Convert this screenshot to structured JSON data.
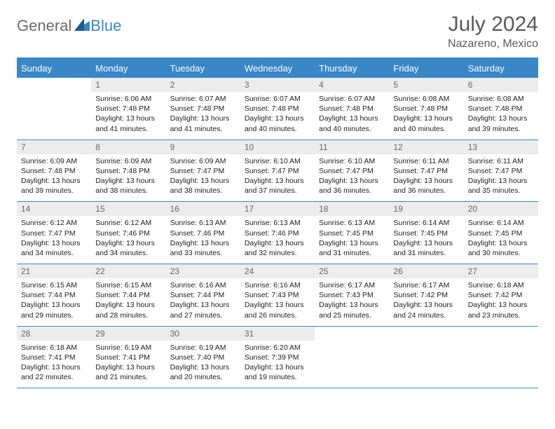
{
  "logo": {
    "text_general": "General",
    "text_blue": "Blue"
  },
  "header": {
    "month_title": "July 2024",
    "location": "Nazareno, Mexico"
  },
  "colors": {
    "brand_blue": "#3a87c8",
    "header_text": "#5a5a5a",
    "daynum_bg": "#ececec",
    "daynum_text": "#666666",
    "body_text": "#222222",
    "page_bg": "#ffffff"
  },
  "day_headers": [
    "Sunday",
    "Monday",
    "Tuesday",
    "Wednesday",
    "Thursday",
    "Friday",
    "Saturday"
  ],
  "weeks": [
    [
      {
        "empty": true
      },
      {
        "num": "1",
        "sunrise": "Sunrise: 6:06 AM",
        "sunset": "Sunset: 7:48 PM",
        "daylight1": "Daylight: 13 hours",
        "daylight2": "and 41 minutes."
      },
      {
        "num": "2",
        "sunrise": "Sunrise: 6:07 AM",
        "sunset": "Sunset: 7:48 PM",
        "daylight1": "Daylight: 13 hours",
        "daylight2": "and 41 minutes."
      },
      {
        "num": "3",
        "sunrise": "Sunrise: 6:07 AM",
        "sunset": "Sunset: 7:48 PM",
        "daylight1": "Daylight: 13 hours",
        "daylight2": "and 40 minutes."
      },
      {
        "num": "4",
        "sunrise": "Sunrise: 6:07 AM",
        "sunset": "Sunset: 7:48 PM",
        "daylight1": "Daylight: 13 hours",
        "daylight2": "and 40 minutes."
      },
      {
        "num": "5",
        "sunrise": "Sunrise: 6:08 AM",
        "sunset": "Sunset: 7:48 PM",
        "daylight1": "Daylight: 13 hours",
        "daylight2": "and 40 minutes."
      },
      {
        "num": "6",
        "sunrise": "Sunrise: 6:08 AM",
        "sunset": "Sunset: 7:48 PM",
        "daylight1": "Daylight: 13 hours",
        "daylight2": "and 39 minutes."
      }
    ],
    [
      {
        "num": "7",
        "sunrise": "Sunrise: 6:09 AM",
        "sunset": "Sunset: 7:48 PM",
        "daylight1": "Daylight: 13 hours",
        "daylight2": "and 39 minutes."
      },
      {
        "num": "8",
        "sunrise": "Sunrise: 6:09 AM",
        "sunset": "Sunset: 7:48 PM",
        "daylight1": "Daylight: 13 hours",
        "daylight2": "and 38 minutes."
      },
      {
        "num": "9",
        "sunrise": "Sunrise: 6:09 AM",
        "sunset": "Sunset: 7:47 PM",
        "daylight1": "Daylight: 13 hours",
        "daylight2": "and 38 minutes."
      },
      {
        "num": "10",
        "sunrise": "Sunrise: 6:10 AM",
        "sunset": "Sunset: 7:47 PM",
        "daylight1": "Daylight: 13 hours",
        "daylight2": "and 37 minutes."
      },
      {
        "num": "11",
        "sunrise": "Sunrise: 6:10 AM",
        "sunset": "Sunset: 7:47 PM",
        "daylight1": "Daylight: 13 hours",
        "daylight2": "and 36 minutes."
      },
      {
        "num": "12",
        "sunrise": "Sunrise: 6:11 AM",
        "sunset": "Sunset: 7:47 PM",
        "daylight1": "Daylight: 13 hours",
        "daylight2": "and 36 minutes."
      },
      {
        "num": "13",
        "sunrise": "Sunrise: 6:11 AM",
        "sunset": "Sunset: 7:47 PM",
        "daylight1": "Daylight: 13 hours",
        "daylight2": "and 35 minutes."
      }
    ],
    [
      {
        "num": "14",
        "sunrise": "Sunrise: 6:12 AM",
        "sunset": "Sunset: 7:47 PM",
        "daylight1": "Daylight: 13 hours",
        "daylight2": "and 34 minutes."
      },
      {
        "num": "15",
        "sunrise": "Sunrise: 6:12 AM",
        "sunset": "Sunset: 7:46 PM",
        "daylight1": "Daylight: 13 hours",
        "daylight2": "and 34 minutes."
      },
      {
        "num": "16",
        "sunrise": "Sunrise: 6:13 AM",
        "sunset": "Sunset: 7:46 PM",
        "daylight1": "Daylight: 13 hours",
        "daylight2": "and 33 minutes."
      },
      {
        "num": "17",
        "sunrise": "Sunrise: 6:13 AM",
        "sunset": "Sunset: 7:46 PM",
        "daylight1": "Daylight: 13 hours",
        "daylight2": "and 32 minutes."
      },
      {
        "num": "18",
        "sunrise": "Sunrise: 6:13 AM",
        "sunset": "Sunset: 7:45 PM",
        "daylight1": "Daylight: 13 hours",
        "daylight2": "and 31 minutes."
      },
      {
        "num": "19",
        "sunrise": "Sunrise: 6:14 AM",
        "sunset": "Sunset: 7:45 PM",
        "daylight1": "Daylight: 13 hours",
        "daylight2": "and 31 minutes."
      },
      {
        "num": "20",
        "sunrise": "Sunrise: 6:14 AM",
        "sunset": "Sunset: 7:45 PM",
        "daylight1": "Daylight: 13 hours",
        "daylight2": "and 30 minutes."
      }
    ],
    [
      {
        "num": "21",
        "sunrise": "Sunrise: 6:15 AM",
        "sunset": "Sunset: 7:44 PM",
        "daylight1": "Daylight: 13 hours",
        "daylight2": "and 29 minutes."
      },
      {
        "num": "22",
        "sunrise": "Sunrise: 6:15 AM",
        "sunset": "Sunset: 7:44 PM",
        "daylight1": "Daylight: 13 hours",
        "daylight2": "and 28 minutes."
      },
      {
        "num": "23",
        "sunrise": "Sunrise: 6:16 AM",
        "sunset": "Sunset: 7:44 PM",
        "daylight1": "Daylight: 13 hours",
        "daylight2": "and 27 minutes."
      },
      {
        "num": "24",
        "sunrise": "Sunrise: 6:16 AM",
        "sunset": "Sunset: 7:43 PM",
        "daylight1": "Daylight: 13 hours",
        "daylight2": "and 26 minutes."
      },
      {
        "num": "25",
        "sunrise": "Sunrise: 6:17 AM",
        "sunset": "Sunset: 7:43 PM",
        "daylight1": "Daylight: 13 hours",
        "daylight2": "and 25 minutes."
      },
      {
        "num": "26",
        "sunrise": "Sunrise: 6:17 AM",
        "sunset": "Sunset: 7:42 PM",
        "daylight1": "Daylight: 13 hours",
        "daylight2": "and 24 minutes."
      },
      {
        "num": "27",
        "sunrise": "Sunrise: 6:18 AM",
        "sunset": "Sunset: 7:42 PM",
        "daylight1": "Daylight: 13 hours",
        "daylight2": "and 23 minutes."
      }
    ],
    [
      {
        "num": "28",
        "sunrise": "Sunrise: 6:18 AM",
        "sunset": "Sunset: 7:41 PM",
        "daylight1": "Daylight: 13 hours",
        "daylight2": "and 22 minutes."
      },
      {
        "num": "29",
        "sunrise": "Sunrise: 6:19 AM",
        "sunset": "Sunset: 7:41 PM",
        "daylight1": "Daylight: 13 hours",
        "daylight2": "and 21 minutes."
      },
      {
        "num": "30",
        "sunrise": "Sunrise: 6:19 AM",
        "sunset": "Sunset: 7:40 PM",
        "daylight1": "Daylight: 13 hours",
        "daylight2": "and 20 minutes."
      },
      {
        "num": "31",
        "sunrise": "Sunrise: 6:20 AM",
        "sunset": "Sunset: 7:39 PM",
        "daylight1": "Daylight: 13 hours",
        "daylight2": "and 19 minutes."
      },
      {
        "empty": true
      },
      {
        "empty": true
      },
      {
        "empty": true
      }
    ]
  ]
}
